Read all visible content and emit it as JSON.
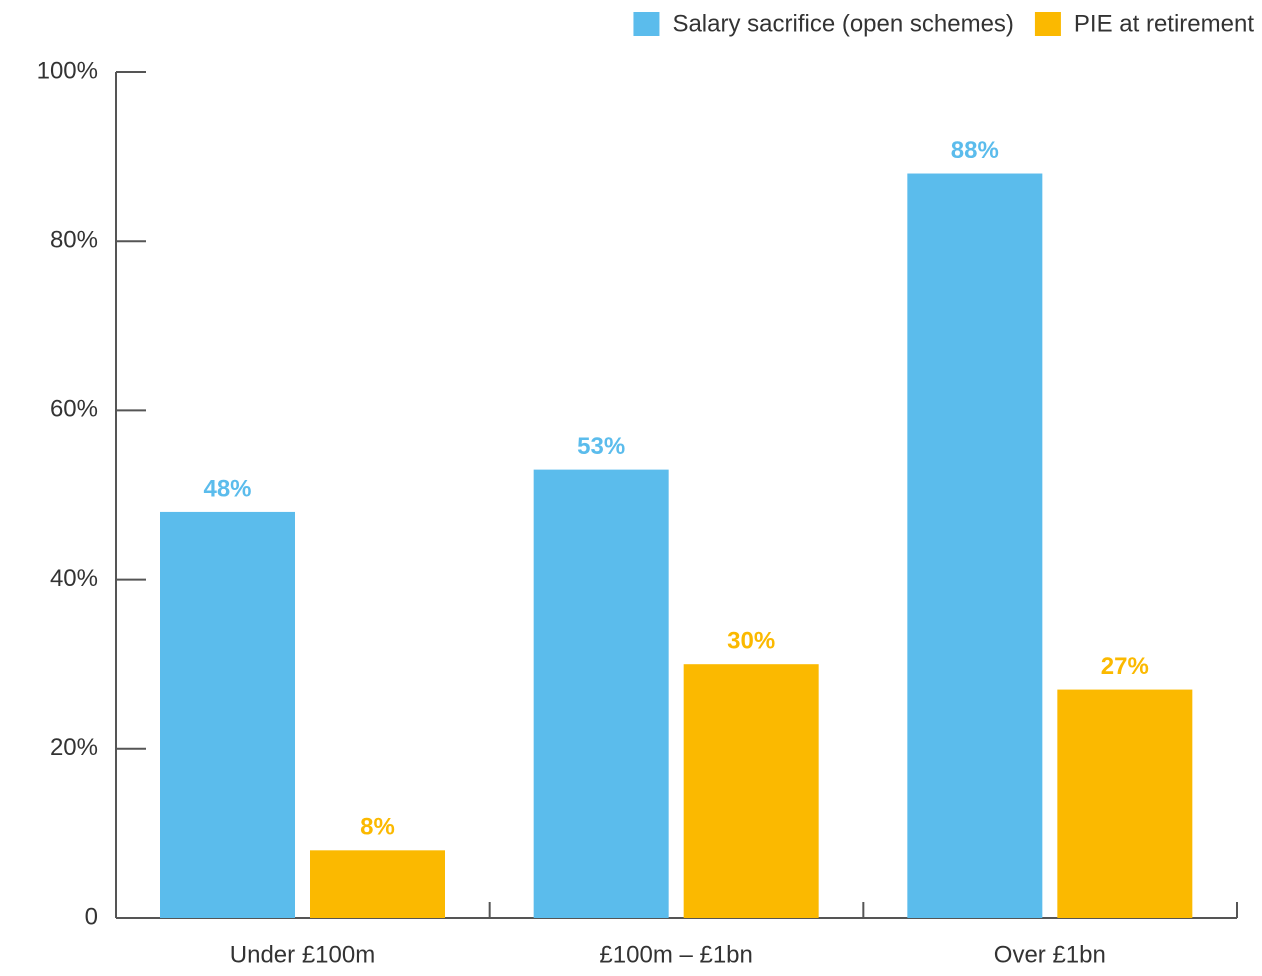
{
  "chart_data": {
    "type": "bar",
    "categories": [
      "Under £100m",
      "£100m – £1bn",
      "Over £1bn"
    ],
    "series": [
      {
        "name": "Salary sacrifice (open schemes)",
        "color": "#5bbcec",
        "values": [
          48,
          53,
          88
        ],
        "value_labels": [
          "48%",
          "53%",
          "88%"
        ]
      },
      {
        "name": "PIE at retirement",
        "color": "#fbb900",
        "values": [
          8,
          30,
          27
        ],
        "value_labels": [
          "8%",
          "30%",
          "27%"
        ]
      }
    ],
    "ylim": [
      0,
      100
    ],
    "yticks": [
      0,
      {
        "value": 20,
        "label": "20%"
      },
      {
        "value": 40,
        "label": "40%"
      },
      {
        "value": 60,
        "label": "60%"
      },
      {
        "value": 80,
        "label": "80%"
      },
      {
        "value": 100,
        "label": "100%"
      }
    ],
    "legend": "top-right"
  }
}
